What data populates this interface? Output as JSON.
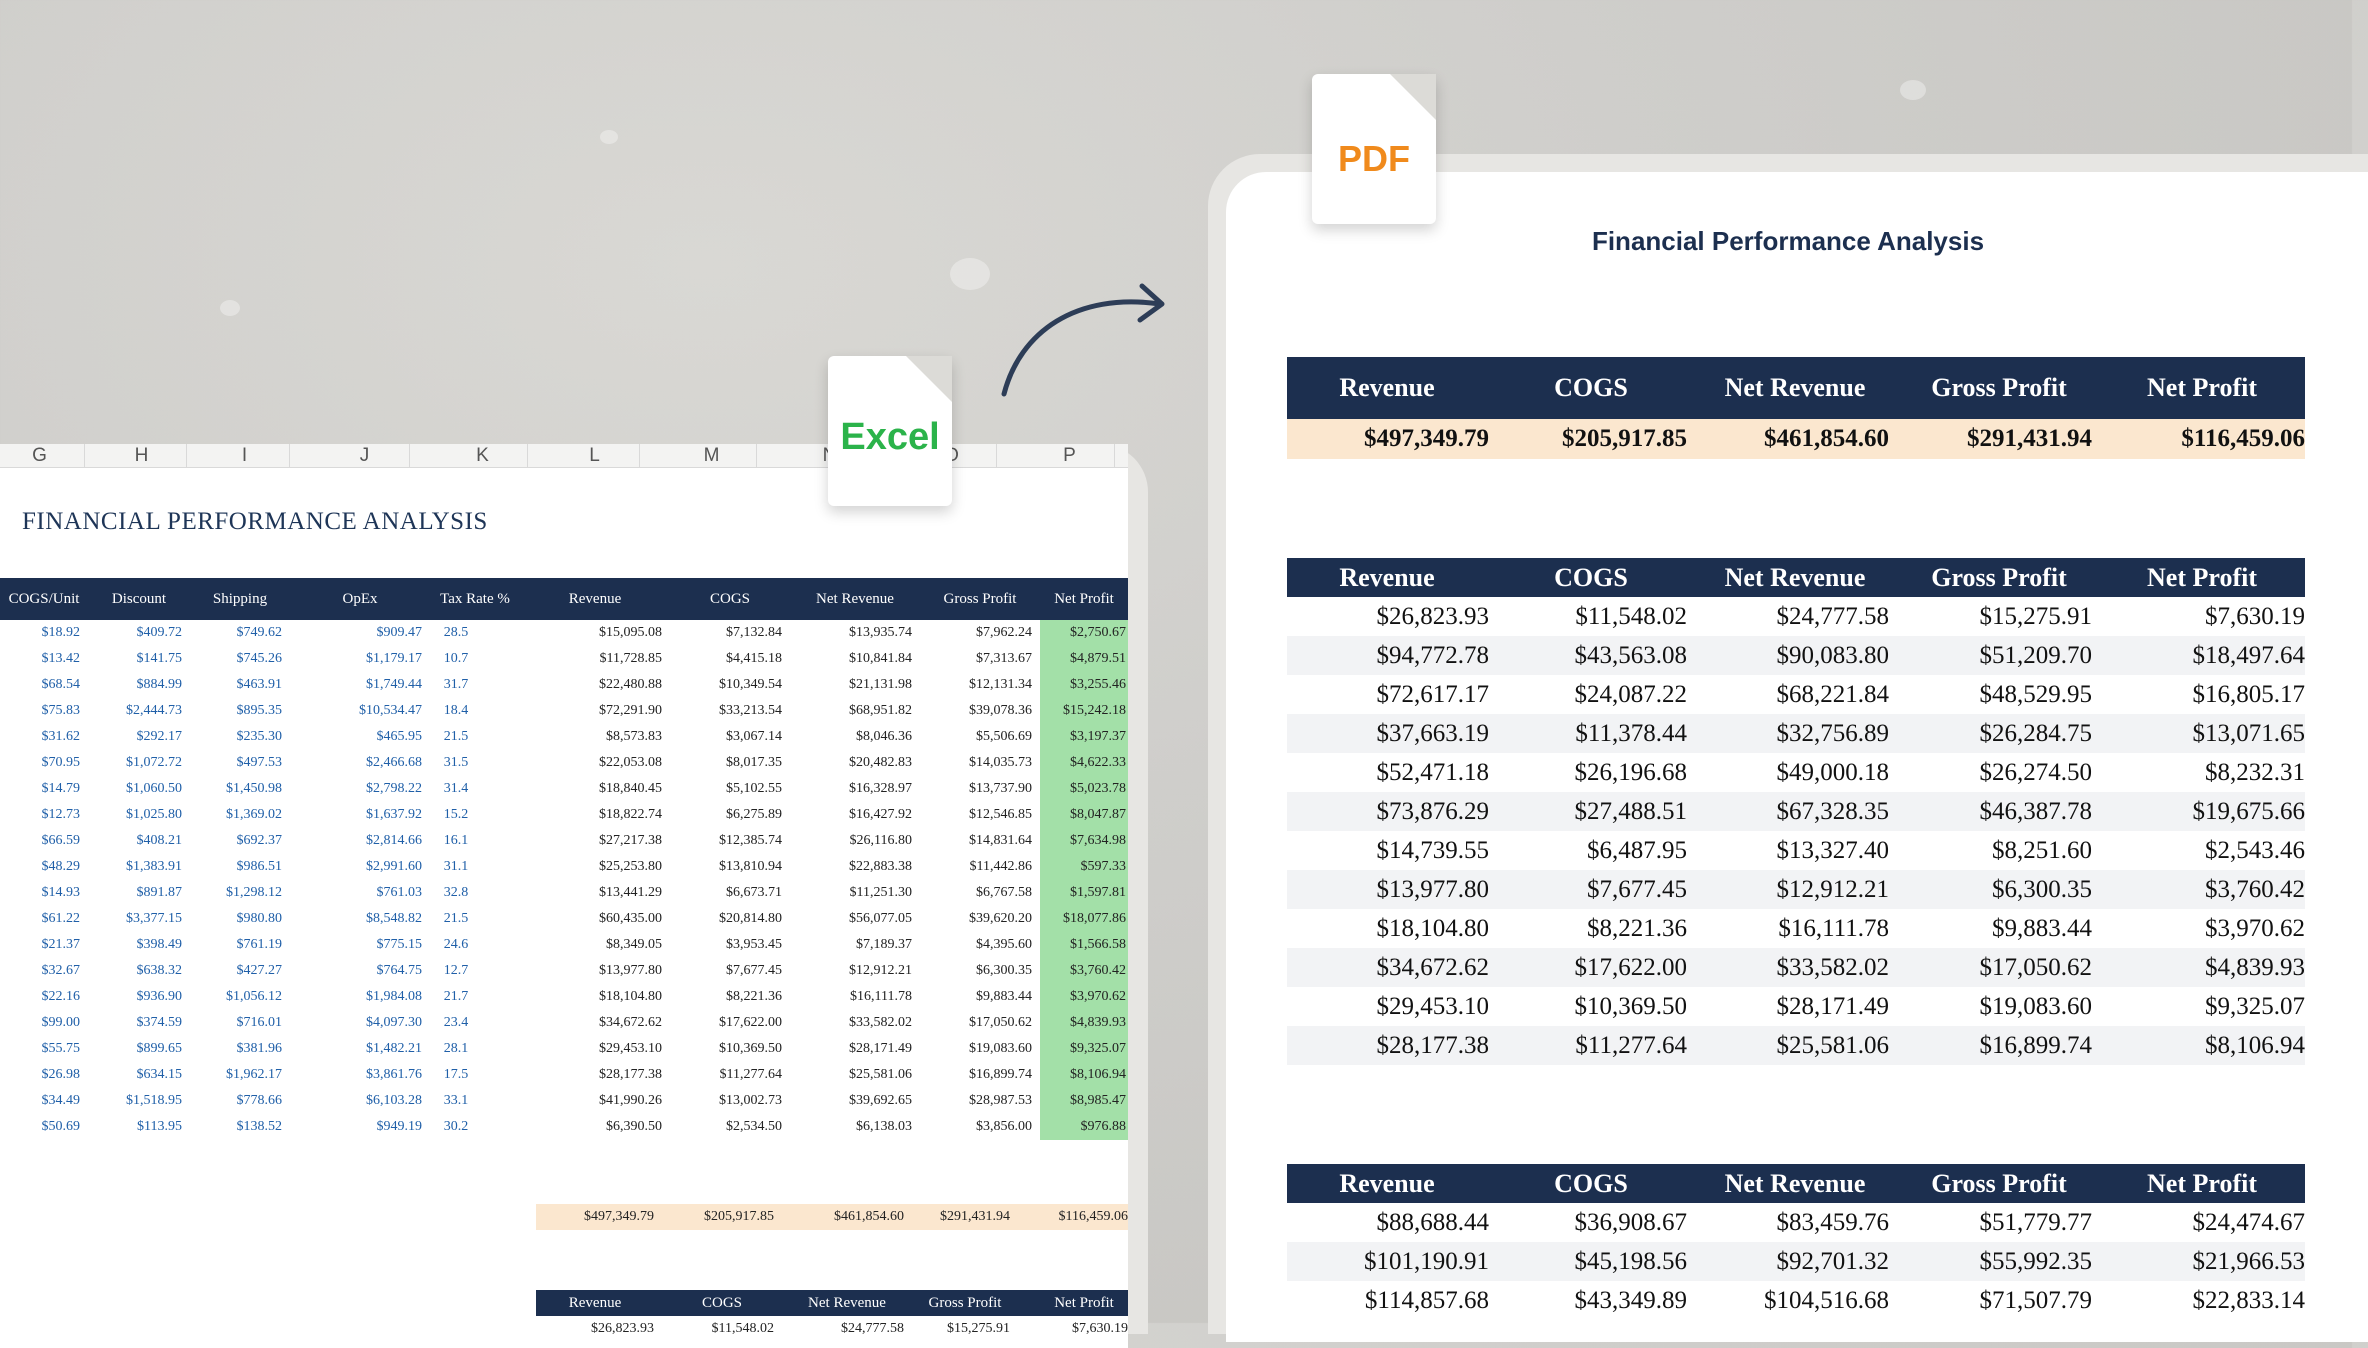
{
  "excel": {
    "icon_label": "Excel",
    "icon_color": "#2bb34a",
    "column_letters": [
      "G",
      "H",
      "I",
      "J",
      "K",
      "L",
      "M",
      "N",
      "O",
      "P"
    ],
    "title": "FINANCIAL PERFORMANCE ANALYSIS",
    "headers": [
      "COGS/Unit",
      "Discount",
      "Shipping",
      "OpEx",
      "Tax Rate %",
      "Revenue",
      "COGS",
      "Net Revenue",
      "Gross Profit",
      "Net Profit"
    ],
    "rows": [
      [
        "$18.92",
        "$409.72",
        "$749.62",
        "$909.47",
        "28.5",
        "$15,095.08",
        "$7,132.84",
        "$13,935.74",
        "$7,962.24",
        "$2,750.67"
      ],
      [
        "$13.42",
        "$141.75",
        "$745.26",
        "$1,179.17",
        "10.7",
        "$11,728.85",
        "$4,415.18",
        "$10,841.84",
        "$7,313.67",
        "$4,879.51"
      ],
      [
        "$68.54",
        "$884.99",
        "$463.91",
        "$1,749.44",
        "31.7",
        "$22,480.88",
        "$10,349.54",
        "$21,131.98",
        "$12,131.34",
        "$3,255.46"
      ],
      [
        "$75.83",
        "$2,444.73",
        "$895.35",
        "$10,534.47",
        "18.4",
        "$72,291.90",
        "$33,213.54",
        "$68,951.82",
        "$39,078.36",
        "$15,242.18"
      ],
      [
        "$31.62",
        "$292.17",
        "$235.30",
        "$465.95",
        "21.5",
        "$8,573.83",
        "$3,067.14",
        "$8,046.36",
        "$5,506.69",
        "$3,197.37"
      ],
      [
        "$70.95",
        "$1,072.72",
        "$497.53",
        "$2,466.68",
        "31.5",
        "$22,053.08",
        "$8,017.35",
        "$20,482.83",
        "$14,035.73",
        "$4,622.33"
      ],
      [
        "$14.79",
        "$1,060.50",
        "$1,450.98",
        "$2,798.22",
        "31.4",
        "$18,840.45",
        "$5,102.55",
        "$16,328.97",
        "$13,737.90",
        "$5,023.78"
      ],
      [
        "$12.73",
        "$1,025.80",
        "$1,369.02",
        "$1,637.92",
        "15.2",
        "$18,822.74",
        "$6,275.89",
        "$16,427.92",
        "$12,546.85",
        "$8,047.87"
      ],
      [
        "$66.59",
        "$408.21",
        "$692.37",
        "$2,814.66",
        "16.1",
        "$27,217.38",
        "$12,385.74",
        "$26,116.80",
        "$14,831.64",
        "$7,634.98"
      ],
      [
        "$48.29",
        "$1,383.91",
        "$986.51",
        "$2,991.60",
        "31.1",
        "$25,253.80",
        "$13,810.94",
        "$22,883.38",
        "$11,442.86",
        "$597.33"
      ],
      [
        "$14.93",
        "$891.87",
        "$1,298.12",
        "$761.03",
        "32.8",
        "$13,441.29",
        "$6,673.71",
        "$11,251.30",
        "$6,767.58",
        "$1,597.81"
      ],
      [
        "$61.22",
        "$3,377.15",
        "$980.80",
        "$8,548.82",
        "21.5",
        "$60,435.00",
        "$20,814.80",
        "$56,077.05",
        "$39,620.20",
        "$18,077.86"
      ],
      [
        "$21.37",
        "$398.49",
        "$761.19",
        "$775.15",
        "24.6",
        "$8,349.05",
        "$3,953.45",
        "$7,189.37",
        "$4,395.60",
        "$1,566.58"
      ],
      [
        "$32.67",
        "$638.32",
        "$427.27",
        "$764.75",
        "12.7",
        "$13,977.80",
        "$7,677.45",
        "$12,912.21",
        "$6,300.35",
        "$3,760.42"
      ],
      [
        "$22.16",
        "$936.90",
        "$1,056.12",
        "$1,984.08",
        "21.7",
        "$18,104.80",
        "$8,221.36",
        "$16,111.78",
        "$9,883.44",
        "$3,970.62"
      ],
      [
        "$99.00",
        "$374.59",
        "$716.01",
        "$4,097.30",
        "23.4",
        "$34,672.62",
        "$17,622.00",
        "$33,582.02",
        "$17,050.62",
        "$4,839.93"
      ],
      [
        "$55.75",
        "$899.65",
        "$381.96",
        "$1,482.21",
        "28.1",
        "$29,453.10",
        "$10,369.50",
        "$28,171.49",
        "$19,083.60",
        "$9,325.07"
      ],
      [
        "$26.98",
        "$634.15",
        "$1,962.17",
        "$3,861.76",
        "17.5",
        "$28,177.38",
        "$11,277.64",
        "$25,581.06",
        "$16,899.74",
        "$8,106.94"
      ],
      [
        "$34.49",
        "$1,518.95",
        "$778.66",
        "$6,103.28",
        "33.1",
        "$41,990.26",
        "$13,002.73",
        "$39,692.65",
        "$28,987.53",
        "$8,985.47"
      ],
      [
        "$50.69",
        "$113.95",
        "$138.52",
        "$949.19",
        "30.2",
        "$6,390.50",
        "$2,534.50",
        "$6,138.03",
        "$3,856.00",
        "$976.88"
      ]
    ],
    "totals": [
      "$497,349.79",
      "$205,917.85",
      "$461,854.60",
      "$291,431.94",
      "$116,459.06"
    ],
    "sub_headers": [
      "Revenue",
      "COGS",
      "Net Revenue",
      "Gross Profit",
      "Net Profit"
    ],
    "sub_row": [
      "$26,823.93",
      "$11,548.02",
      "$24,777.58",
      "$15,275.91",
      "$7,630.19"
    ]
  },
  "pdf": {
    "icon_label": "PDF",
    "icon_color": "#f08a1c",
    "title": "Financial Performance Analysis",
    "summary": {
      "headers": [
        "Revenue",
        "COGS",
        "Net Revenue",
        "Gross Profit",
        "Net Profit"
      ],
      "values": [
        "$497,349.79",
        "$205,917.85",
        "$461,854.60",
        "$291,431.94",
        "$116,459.06"
      ]
    },
    "table1": {
      "headers": [
        "Revenue",
        "COGS",
        "Net Revenue",
        "Gross Profit",
        "Net Profit"
      ],
      "rows": [
        [
          "$26,823.93",
          "$11,548.02",
          "$24,777.58",
          "$15,275.91",
          "$7,630.19"
        ],
        [
          "$94,772.78",
          "$43,563.08",
          "$90,083.80",
          "$51,209.70",
          "$18,497.64"
        ],
        [
          "$72,617.17",
          "$24,087.22",
          "$68,221.84",
          "$48,529.95",
          "$16,805.17"
        ],
        [
          "$37,663.19",
          "$11,378.44",
          "$32,756.89",
          "$26,284.75",
          "$13,071.65"
        ],
        [
          "$52,471.18",
          "$26,196.68",
          "$49,000.18",
          "$26,274.50",
          "$8,232.31"
        ],
        [
          "$73,876.29",
          "$27,488.51",
          "$67,328.35",
          "$46,387.78",
          "$19,675.66"
        ],
        [
          "$14,739.55",
          "$6,487.95",
          "$13,327.40",
          "$8,251.60",
          "$2,543.46"
        ],
        [
          "$13,977.80",
          "$7,677.45",
          "$12,912.21",
          "$6,300.35",
          "$3,760.42"
        ],
        [
          "$18,104.80",
          "$8,221.36",
          "$16,111.78",
          "$9,883.44",
          "$3,970.62"
        ],
        [
          "$34,672.62",
          "$17,622.00",
          "$33,582.02",
          "$17,050.62",
          "$4,839.93"
        ],
        [
          "$29,453.10",
          "$10,369.50",
          "$28,171.49",
          "$19,083.60",
          "$9,325.07"
        ],
        [
          "$28,177.38",
          "$11,277.64",
          "$25,581.06",
          "$16,899.74",
          "$8,106.94"
        ]
      ]
    },
    "table2": {
      "headers": [
        "Revenue",
        "COGS",
        "Net Revenue",
        "Gross Profit",
        "Net Profit"
      ],
      "rows": [
        [
          "$88,688.44",
          "$36,908.67",
          "$83,459.76",
          "$51,779.77",
          "$24,474.67"
        ],
        [
          "$101,190.91",
          "$45,198.56",
          "$92,701.32",
          "$55,992.35",
          "$21,966.53"
        ],
        [
          "$114,857.68",
          "$43,349.89",
          "$104,516.68",
          "$71,507.79",
          "$22,833.14"
        ]
      ]
    }
  }
}
